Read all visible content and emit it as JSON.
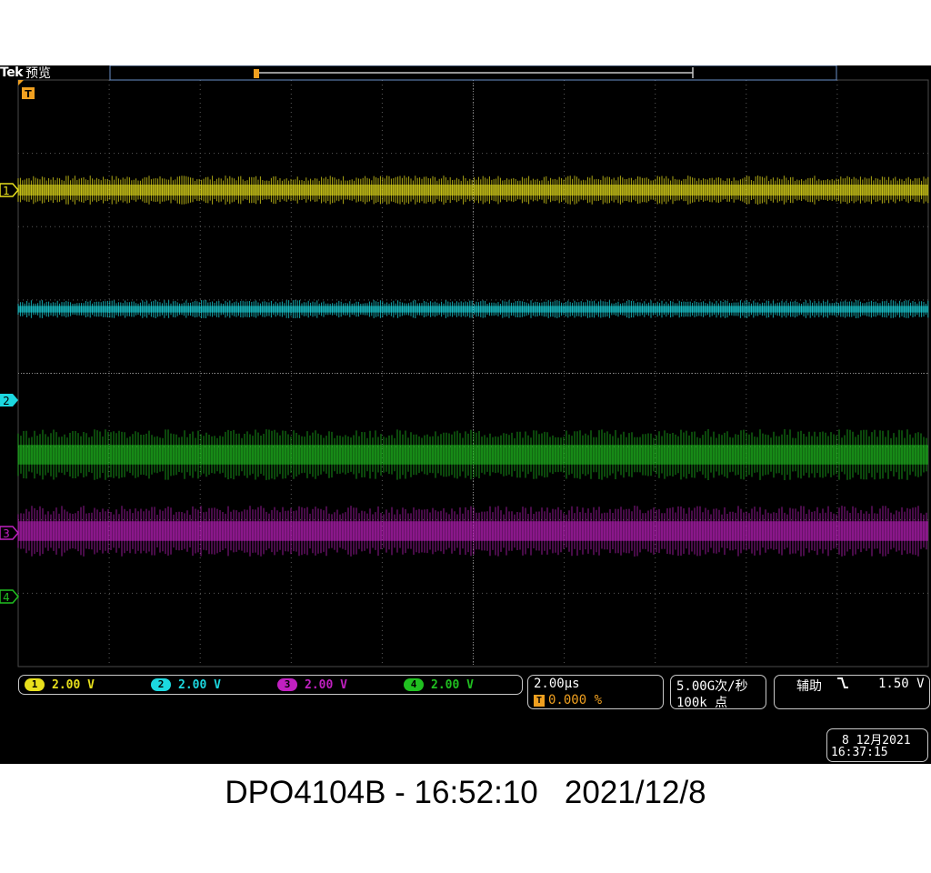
{
  "header": {
    "brand": "Tek",
    "mode": "预览"
  },
  "trigger_marker": "T",
  "channels": [
    {
      "num": "1",
      "scale": "2.00 V",
      "color": "#e8e01c"
    },
    {
      "num": "2",
      "scale": "2.00 V",
      "color": "#1cd8e0"
    },
    {
      "num": "3",
      "scale": "2.00 V",
      "color": "#c020c0"
    },
    {
      "num": "4",
      "scale": "2.00 V",
      "color": "#20c020"
    }
  ],
  "timebase": {
    "scale": "2.00µs",
    "trigger_pos_icon": "T",
    "trigger_pos": "0.000 %"
  },
  "acquisition": {
    "rate": "5.00G次/秒",
    "record": "100k 点"
  },
  "trigger": {
    "source": "辅助",
    "slope_icon": "falling-edge-icon",
    "level": "1.50 V"
  },
  "datetime": {
    "date": "8 12月2021",
    "time": "16:37:15"
  },
  "caption": "DPO4104B - 16:52:10   2021/12/8"
}
